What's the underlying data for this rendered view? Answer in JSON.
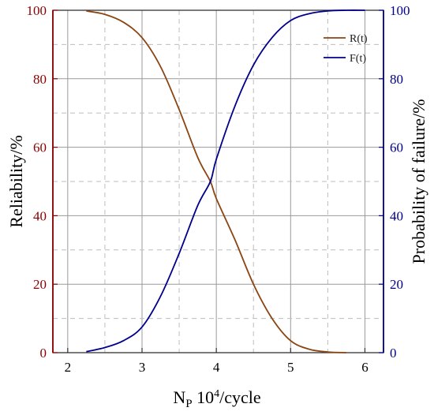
{
  "chart_data": {
    "type": "line",
    "x_axis": {
      "label": "N",
      "label_subscript": "P",
      "label_rest_base": " 10",
      "label_rest_sup": "4",
      "label_rest_tail": "/cycle",
      "range": [
        1.8,
        6.25
      ],
      "ticks": [
        2,
        3,
        4,
        5,
        6
      ]
    },
    "y_left": {
      "label": "Reliability/%",
      "range": [
        0,
        100
      ],
      "ticks": [
        0,
        20,
        40,
        60,
        80,
        100
      ],
      "color": "#8b0000"
    },
    "y_right": {
      "label": "Probability of failure/%",
      "range": [
        0,
        100
      ],
      "ticks": [
        0,
        20,
        40,
        60,
        80,
        100
      ],
      "color": "#00008b"
    },
    "grid": true,
    "legend_position": "top-right",
    "series": [
      {
        "name": "R(t)",
        "color": "#8b4513",
        "x": [
          2.25,
          2.5,
          2.75,
          3.0,
          3.25,
          3.5,
          3.75,
          3.92,
          4.0,
          4.25,
          4.5,
          4.75,
          5.0,
          5.25,
          5.5,
          5.75
        ],
        "y": [
          99.8,
          98.8,
          96.5,
          92.0,
          83.5,
          71.0,
          57.0,
          50.0,
          45.0,
          33.0,
          20.0,
          10.0,
          3.5,
          1.0,
          0.2,
          0.0
        ]
      },
      {
        "name": "F(t)",
        "color": "#00008b",
        "x": [
          2.25,
          2.5,
          2.75,
          3.0,
          3.25,
          3.5,
          3.75,
          3.92,
          4.0,
          4.25,
          4.5,
          4.75,
          5.0,
          5.25,
          5.5,
          5.75,
          6.0
        ],
        "y": [
          0.3,
          1.5,
          3.5,
          7.5,
          16.5,
          29.0,
          43.0,
          50.0,
          56.5,
          72.0,
          84.0,
          92.0,
          97.0,
          99.0,
          99.8,
          100.0,
          100.0
        ]
      }
    ]
  }
}
